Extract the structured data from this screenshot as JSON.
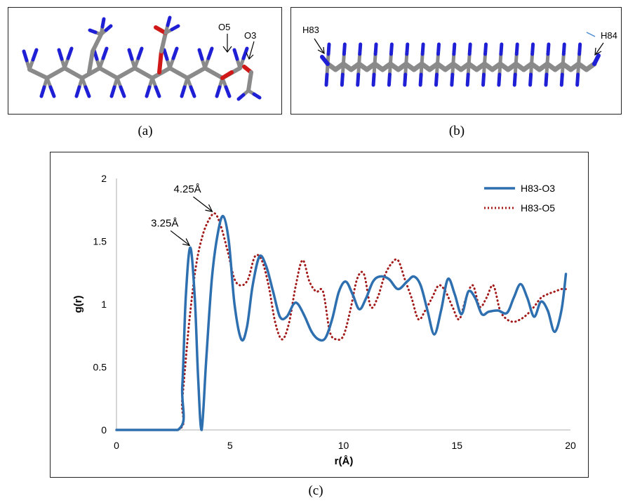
{
  "panels": {
    "a": {
      "caption": "(a)",
      "labels": {
        "o5": "O5",
        "o3": "O3"
      }
    },
    "b": {
      "caption": "(b)",
      "labels": {
        "h83": "H83",
        "h84": "H84"
      }
    },
    "c": {
      "caption": "(c)"
    }
  },
  "colors": {
    "carbon": "#8a8a8a",
    "hydrogen": "#1f1fd6",
    "oxygen": "#d01818",
    "series1": "#2e6fb0",
    "series2": "#a31a1a",
    "axis": "#bfbfbf"
  },
  "chart_data": {
    "type": "line",
    "title": "",
    "xlabel": "r(Å)",
    "ylabel": "g(r)",
    "xlim": [
      0,
      20
    ],
    "ylim": [
      0,
      2
    ],
    "xticks": [
      "0",
      "5",
      "10",
      "15",
      "20"
    ],
    "yticks": [
      "0",
      "0.5",
      "1",
      "1.5",
      "2"
    ],
    "grid": false,
    "legend": "top-right",
    "annotations": [
      {
        "text": "3.25Å",
        "x": 3.25,
        "y": 1.45
      },
      {
        "text": "4.25Å",
        "x": 4.25,
        "y": 1.72
      }
    ],
    "series": [
      {
        "name": "H83-O3",
        "style": "solid",
        "x": [
          0,
          2.7,
          2.9,
          3.05,
          3.25,
          3.45,
          3.6,
          3.75,
          3.95,
          4.2,
          4.45,
          4.7,
          4.95,
          5.2,
          5.5,
          5.75,
          6.0,
          6.3,
          6.6,
          6.9,
          7.2,
          7.5,
          7.8,
          8.0,
          8.3,
          8.6,
          8.9,
          9.2,
          9.5,
          9.8,
          10.1,
          10.4,
          10.7,
          11.0,
          11.3,
          11.6,
          12.0,
          12.4,
          12.8,
          13.1,
          13.4,
          13.7,
          14.0,
          14.3,
          14.6,
          14.9,
          15.2,
          15.5,
          15.8,
          16.1,
          16.4,
          16.8,
          17.2,
          17.5,
          17.8,
          18.1,
          18.4,
          18.7,
          19.0,
          19.3,
          19.6,
          19.8
        ],
        "y": [
          0,
          0,
          0.35,
          1.05,
          1.45,
          1.05,
          0.4,
          0.0,
          0.55,
          1.2,
          1.55,
          1.7,
          1.5,
          1.0,
          0.72,
          0.82,
          1.15,
          1.38,
          1.3,
          1.1,
          0.9,
          0.9,
          1.0,
          1.0,
          0.9,
          0.78,
          0.72,
          0.73,
          0.88,
          1.1,
          1.18,
          1.08,
          0.96,
          1.05,
          1.18,
          1.22,
          1.2,
          1.12,
          1.18,
          1.22,
          1.15,
          0.95,
          0.76,
          0.95,
          1.2,
          1.08,
          0.92,
          1.1,
          1.05,
          0.92,
          0.94,
          0.95,
          0.93,
          1.05,
          1.16,
          1.05,
          0.9,
          1.02,
          0.95,
          0.78,
          0.95,
          1.24
        ]
      },
      {
        "name": "H83-O5",
        "style": "dotted",
        "x": [
          0,
          2.7,
          2.9,
          3.2,
          3.5,
          3.8,
          4.1,
          4.35,
          4.6,
          4.9,
          5.2,
          5.5,
          5.8,
          6.1,
          6.4,
          6.7,
          7.0,
          7.3,
          7.6,
          7.9,
          8.2,
          8.5,
          8.8,
          9.1,
          9.4,
          9.7,
          10.0,
          10.3,
          10.6,
          10.9,
          11.2,
          11.5,
          11.8,
          12.1,
          12.4,
          12.7,
          13.0,
          13.3,
          13.6,
          13.9,
          14.2,
          14.5,
          14.8,
          15.1,
          15.4,
          15.7,
          16.0,
          16.3,
          16.6,
          16.9,
          17.2,
          17.5,
          17.8,
          18.1,
          18.4,
          18.7,
          19.0,
          19.3,
          19.6,
          19.8
        ],
        "y": [
          0,
          0,
          0.25,
          0.85,
          1.3,
          1.55,
          1.68,
          1.72,
          1.62,
          1.42,
          1.2,
          1.15,
          1.2,
          1.38,
          1.35,
          1.15,
          0.85,
          0.72,
          0.85,
          1.15,
          1.35,
          1.18,
          1.1,
          1.1,
          0.78,
          0.72,
          0.75,
          0.95,
          1.2,
          1.24,
          0.98,
          1.05,
          1.22,
          1.32,
          1.35,
          1.2,
          1.05,
          0.88,
          0.95,
          1.05,
          1.15,
          1.1,
          0.98,
          0.88,
          1.05,
          1.15,
          0.98,
          1.05,
          1.15,
          0.95,
          0.88,
          0.86,
          0.88,
          0.92,
          0.98,
          1.05,
          1.08,
          1.1,
          1.12,
          1.12
        ]
      }
    ]
  }
}
